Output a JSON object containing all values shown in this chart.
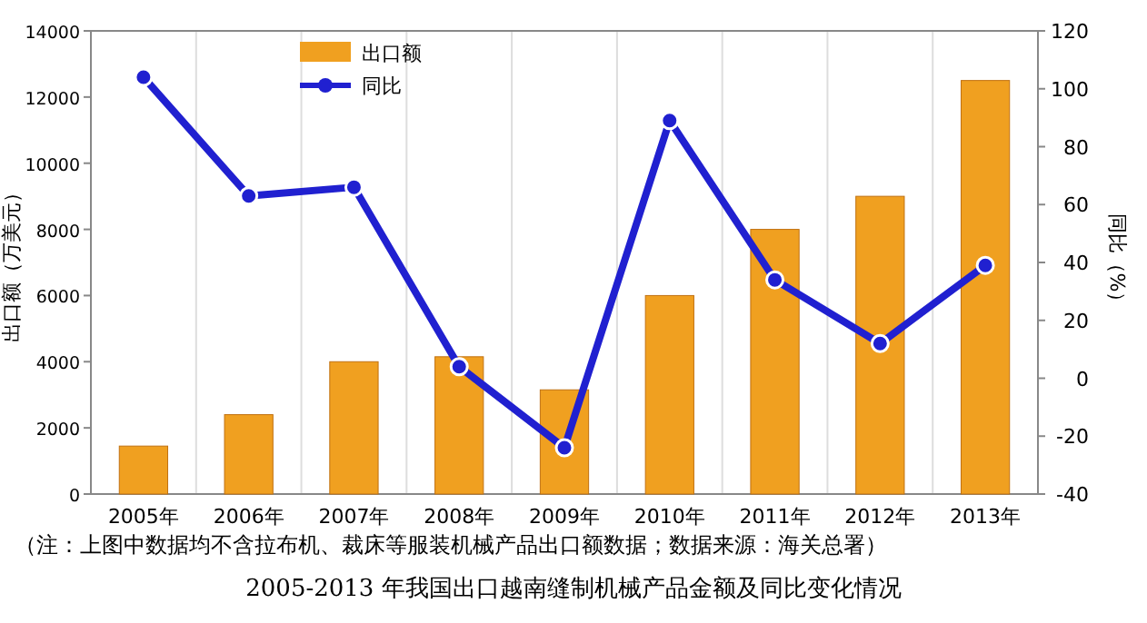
{
  "chart_data": {
    "type": "bar",
    "categories": [
      "2005年",
      "2006年",
      "2007年",
      "2008年",
      "2009年",
      "2010年",
      "2011年",
      "2012年",
      "2013年"
    ],
    "series": [
      {
        "name": "出口额",
        "color": "#f0a020",
        "values": [
          1450,
          2400,
          4000,
          4150,
          3150,
          6000,
          8000,
          9000,
          12500
        ]
      },
      {
        "name": "同比",
        "type": "line",
        "axis": "y2",
        "color": "#2020d0",
        "marker": "circle",
        "values": [
          104,
          63,
          66,
          4,
          -24,
          89,
          34,
          12,
          39
        ]
      }
    ],
    "ylabel": "出口额（万美元）",
    "y2label": "同比（%）",
    "ylim": [
      0,
      14000
    ],
    "yticks": [
      0,
      2000,
      4000,
      6000,
      8000,
      10000,
      12000,
      14000
    ],
    "y2lim": [
      -40,
      120
    ],
    "y2ticks": [
      -40,
      -20,
      0,
      20,
      40,
      60,
      80,
      100,
      120
    ],
    "grid": "x",
    "legend": "top left",
    "annotations": [
      "（注：上图中数据均不含拉布机、裁床等服装机械产品出口额数据；数据来源：海关总署）",
      "2005-2013 年我国出口越南缝制机械产品金额及同比变化情况"
    ]
  }
}
